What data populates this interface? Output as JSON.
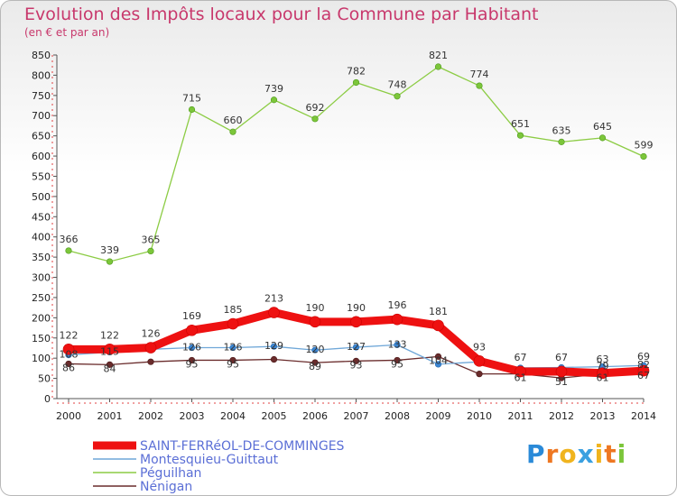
{
  "chart_data": {
    "type": "line",
    "title": "Evolution des Impôts locaux pour la Commune par Habitant",
    "subtitle": "(en € et par an)",
    "x": [
      "2000",
      "2001",
      "2002",
      "2003",
      "2004",
      "2005",
      "2006",
      "2007",
      "2008",
      "2009",
      "2010",
      "2011",
      "2012",
      "2013",
      "2014"
    ],
    "ylim": [
      0,
      850
    ],
    "yticks": [
      0,
      50,
      100,
      150,
      200,
      250,
      300,
      350,
      400,
      450,
      500,
      550,
      600,
      650,
      700,
      750,
      800,
      850
    ],
    "grid": false,
    "series": [
      {
        "name": "Péguilhan",
        "color": "#8ccc44",
        "dot": "#7cc63a",
        "values": [
          366,
          339,
          365,
          715,
          660,
          739,
          692,
          782,
          748,
          821,
          774,
          651,
          635,
          645,
          599
        ],
        "labels": [
          "366",
          "339",
          "365",
          "715",
          "660",
          "739",
          "692",
          "782",
          "748",
          "821",
          "774",
          "651",
          "635",
          "645",
          "599"
        ]
      },
      {
        "name": "Montesquieu-Guittaut",
        "color": "#6fa7d8",
        "dot": "#3b86d4",
        "values": [
          108,
          115,
          122,
          126,
          126,
          129,
          120,
          127,
          133,
          85,
          91,
          76,
          77,
          79,
          82
        ],
        "labels": [
          "108",
          "115",
          "",
          "126",
          "126",
          "129",
          "120",
          "127",
          "133",
          "",
          "",
          "",
          "",
          "79",
          "82"
        ]
      },
      {
        "name": "Nénigan",
        "color": "#6a2c2c",
        "dot": "#6a2c2c",
        "values": [
          86,
          84,
          91,
          95,
          95,
          97,
          89,
          93,
          95,
          104,
          61,
          61,
          51,
          61,
          67
        ],
        "labels": [
          "86",
          "84",
          "",
          "95",
          "95",
          "",
          "89",
          "93",
          "95",
          "104",
          "",
          "61",
          "51",
          "61",
          "67"
        ]
      },
      {
        "name": "SAINT-FERRéOL-DE-COMMINGES",
        "color": "#ee1111",
        "dot": "#ee1111",
        "values": [
          122,
          122,
          126,
          169,
          185,
          213,
          190,
          190,
          196,
          181,
          93,
          67,
          67,
          63,
          69
        ],
        "labels": [
          "122",
          "122",
          "126",
          "169",
          "185",
          "213",
          "190",
          "190",
          "196",
          "181",
          "93",
          "67",
          "67",
          "63",
          "69"
        ]
      }
    ],
    "legend_order": [
      "SAINT-FERRéOL-DE-COMMINGES",
      "Montesquieu-Guittaut",
      "Péguilhan",
      "Nénigan"
    ]
  },
  "logo": {
    "text": "Proxiti",
    "letters": [
      "P",
      "r",
      "o",
      "x",
      "i",
      "t",
      "i"
    ],
    "letter_colors": [
      "#2a8ad8",
      "#ee7722",
      "#f0b41e",
      "#3aa0e0",
      "#f0b41e",
      "#ee7722",
      "#7cc63a"
    ]
  }
}
